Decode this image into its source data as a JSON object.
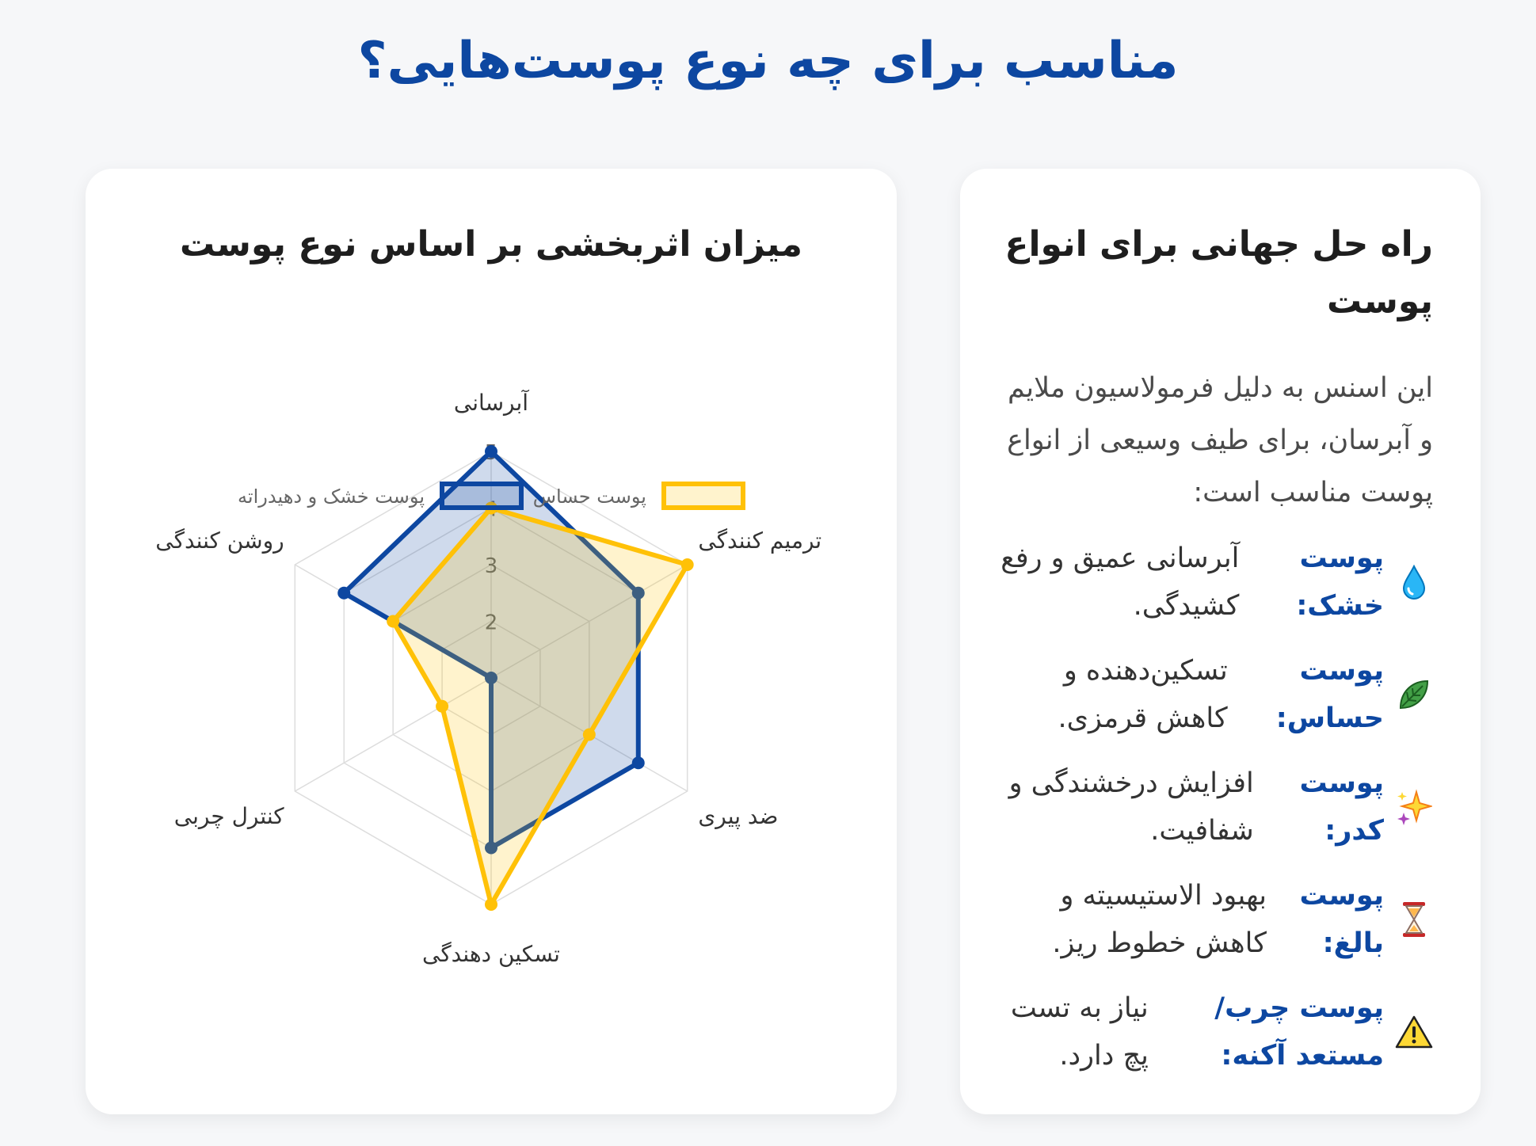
{
  "page_title": "مناسب برای چه نوع پوست‌هایی؟",
  "info": {
    "title": "راه حل جهانی برای انواع پوست",
    "description": "این اسنس به دلیل فرمولاسیون ملایم و آبرسان، برای طیف وسیعی از انواع پوست مناسب است:",
    "items": [
      {
        "icon": "water-drop-icon",
        "label": "پوست خشک:",
        "text": "آبرسانی عمیق و رفع کشیدگی."
      },
      {
        "icon": "herb-leaf-icon",
        "label": "پوست حساس:",
        "text": "تسکین‌دهنده و کاهش قرمزی."
      },
      {
        "icon": "sparkles-icon",
        "label": "پوست کدر:",
        "text": "افزایش درخشندگی و شفافیت."
      },
      {
        "icon": "hourglass-icon",
        "label": "پوست بالغ:",
        "text": "بهبود الاستیسیته و کاهش خطوط ریز."
      },
      {
        "icon": "warning-icon",
        "label": "پوست چرب/مستعد آکنه:",
        "text": "نیاز به تست پچ دارد."
      }
    ]
  },
  "chart_data": {
    "type": "radar",
    "title": "میزان اثربخشی بر اساس نوع پوست",
    "categories": [
      "آبرسانی",
      "ترمیم کنندگی",
      "ضد پیری",
      "تسکین دهندگی",
      "کنترل چربی",
      "روشن کنندگی"
    ],
    "series": [
      {
        "name": "پوست خشک و دهیدراته",
        "values": [
          5,
          4,
          4,
          4,
          1,
          4
        ],
        "color": "#0d47a1",
        "fill": "rgba(13,71,161,0.2)"
      },
      {
        "name": "پوست حساس",
        "values": [
          4,
          5,
          3,
          5,
          2,
          3
        ],
        "color": "#ffc107",
        "fill": "rgba(255,193,7,0.2)"
      }
    ],
    "r_range": [
      1,
      5
    ],
    "ticks": [
      "2",
      "3",
      "4",
      "5"
    ],
    "grid": true,
    "legend_position": "top"
  }
}
